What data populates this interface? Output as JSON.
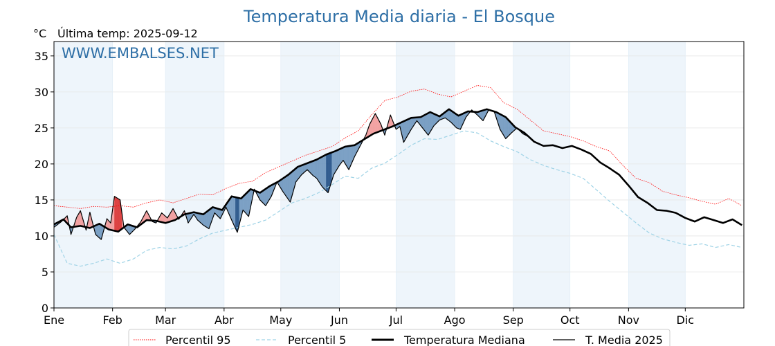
{
  "header": {
    "title": "Temperatura Media diaria - El Bosque",
    "unit": "°C",
    "last_temp": "Última temp: 2025-09-12",
    "watermark": "WWW.EMBALSES.NET"
  },
  "colors": {
    "title": "#2e6fa6",
    "p95": "#ff0000",
    "p5": "#9fd3e6",
    "median": "#000000",
    "current": "#000000",
    "above_fill": "#f29a9a",
    "above_dark": "#d93030",
    "below_fill": "#6f97bf",
    "below_dark": "#1f4e85",
    "month_band": "#eef5fb"
  },
  "chart_data": {
    "type": "line",
    "title": "Temperatura Media diaria - El Bosque",
    "ylabel": "°C",
    "xlim": [
      1,
      366
    ],
    "ylim": [
      0,
      37
    ],
    "yticks": [
      0,
      5,
      10,
      15,
      20,
      25,
      30,
      35
    ],
    "months": [
      "Ene",
      "Feb",
      "Mar",
      "Abr",
      "May",
      "Jun",
      "Jul",
      "Ago",
      "Sep",
      "Oct",
      "Nov",
      "Dic"
    ],
    "month_start_days": [
      1,
      32,
      60,
      91,
      121,
      152,
      182,
      213,
      244,
      274,
      305,
      335
    ],
    "grid": true,
    "legend_position": "bottom",
    "series": [
      {
        "name": "Percentil 95",
        "style": "dotted",
        "points": [
          [
            1,
            14.2
          ],
          [
            8,
            14.0
          ],
          [
            15,
            13.8
          ],
          [
            22,
            14.1
          ],
          [
            29,
            14.0
          ],
          [
            36,
            14.2
          ],
          [
            43,
            14.0
          ],
          [
            50,
            14.6
          ],
          [
            57,
            15.0
          ],
          [
            64,
            14.6
          ],
          [
            71,
            15.2
          ],
          [
            78,
            15.8
          ],
          [
            85,
            15.7
          ],
          [
            92,
            16.6
          ],
          [
            99,
            17.3
          ],
          [
            106,
            17.6
          ],
          [
            113,
            18.8
          ],
          [
            120,
            19.6
          ],
          [
            127,
            20.4
          ],
          [
            134,
            21.2
          ],
          [
            141,
            21.8
          ],
          [
            148,
            22.4
          ],
          [
            155,
            23.6
          ],
          [
            162,
            24.6
          ],
          [
            169,
            26.8
          ],
          [
            176,
            28.8
          ],
          [
            183,
            29.3
          ],
          [
            190,
            30.1
          ],
          [
            197,
            30.4
          ],
          [
            204,
            29.7
          ],
          [
            211,
            29.3
          ],
          [
            218,
            30.1
          ],
          [
            225,
            30.9
          ],
          [
            232,
            30.6
          ],
          [
            239,
            28.5
          ],
          [
            246,
            27.6
          ],
          [
            253,
            26.1
          ],
          [
            260,
            24.6
          ],
          [
            267,
            24.2
          ],
          [
            274,
            23.8
          ],
          [
            281,
            23.2
          ],
          [
            288,
            22.4
          ],
          [
            295,
            21.8
          ],
          [
            302,
            19.8
          ],
          [
            309,
            18.0
          ],
          [
            316,
            17.4
          ],
          [
            323,
            16.2
          ],
          [
            330,
            15.7
          ],
          [
            337,
            15.3
          ],
          [
            344,
            14.8
          ],
          [
            351,
            14.4
          ],
          [
            358,
            15.2
          ],
          [
            365,
            14.2
          ]
        ]
      },
      {
        "name": "Percentil 5",
        "style": "dashed",
        "points": [
          [
            1,
            10.2
          ],
          [
            8,
            6.2
          ],
          [
            15,
            5.8
          ],
          [
            22,
            6.2
          ],
          [
            29,
            6.8
          ],
          [
            36,
            6.2
          ],
          [
            43,
            6.8
          ],
          [
            50,
            8.0
          ],
          [
            57,
            8.4
          ],
          [
            64,
            8.2
          ],
          [
            71,
            8.6
          ],
          [
            78,
            9.6
          ],
          [
            85,
            10.4
          ],
          [
            92,
            10.8
          ],
          [
            99,
            11.2
          ],
          [
            106,
            11.6
          ],
          [
            113,
            12.2
          ],
          [
            120,
            13.4
          ],
          [
            127,
            14.6
          ],
          [
            134,
            15.2
          ],
          [
            141,
            16.0
          ],
          [
            148,
            17.1
          ],
          [
            155,
            18.3
          ],
          [
            162,
            18.0
          ],
          [
            169,
            19.4
          ],
          [
            176,
            20.1
          ],
          [
            183,
            21.3
          ],
          [
            190,
            22.6
          ],
          [
            197,
            23.5
          ],
          [
            204,
            23.4
          ],
          [
            211,
            24.0
          ],
          [
            218,
            24.6
          ],
          [
            225,
            24.3
          ],
          [
            232,
            23.2
          ],
          [
            239,
            22.4
          ],
          [
            246,
            21.7
          ],
          [
            253,
            20.6
          ],
          [
            260,
            19.8
          ],
          [
            267,
            19.2
          ],
          [
            274,
            18.7
          ],
          [
            281,
            18.0
          ],
          [
            288,
            16.4
          ],
          [
            295,
            14.8
          ],
          [
            302,
            13.3
          ],
          [
            309,
            11.8
          ],
          [
            316,
            10.4
          ],
          [
            323,
            9.6
          ],
          [
            330,
            9.1
          ],
          [
            337,
            8.7
          ],
          [
            344,
            8.9
          ],
          [
            351,
            8.4
          ],
          [
            358,
            8.8
          ],
          [
            365,
            8.4
          ]
        ]
      },
      {
        "name": "Temperatura Mediana",
        "style": "thick",
        "points": [
          [
            1,
            11.6
          ],
          [
            6,
            12.3
          ],
          [
            10,
            11.2
          ],
          [
            15,
            11.4
          ],
          [
            20,
            11.1
          ],
          [
            25,
            11.7
          ],
          [
            30,
            10.9
          ],
          [
            35,
            10.6
          ],
          [
            40,
            11.6
          ],
          [
            45,
            11.2
          ],
          [
            50,
            12.2
          ],
          [
            55,
            12.1
          ],
          [
            60,
            11.8
          ],
          [
            65,
            12.2
          ],
          [
            70,
            13.0
          ],
          [
            75,
            13.3
          ],
          [
            80,
            13.0
          ],
          [
            85,
            14.0
          ],
          [
            90,
            13.6
          ],
          [
            95,
            15.5
          ],
          [
            100,
            15.2
          ],
          [
            105,
            16.5
          ],
          [
            110,
            16.0
          ],
          [
            115,
            16.9
          ],
          [
            120,
            17.6
          ],
          [
            125,
            18.5
          ],
          [
            130,
            19.6
          ],
          [
            135,
            20.1
          ],
          [
            140,
            20.6
          ],
          [
            145,
            21.3
          ],
          [
            150,
            21.8
          ],
          [
            155,
            22.4
          ],
          [
            160,
            22.6
          ],
          [
            165,
            23.4
          ],
          [
            170,
            24.2
          ],
          [
            175,
            24.7
          ],
          [
            180,
            25.2
          ],
          [
            185,
            25.8
          ],
          [
            190,
            26.4
          ],
          [
            195,
            26.5
          ],
          [
            200,
            27.2
          ],
          [
            205,
            26.6
          ],
          [
            210,
            27.6
          ],
          [
            215,
            26.7
          ],
          [
            220,
            27.3
          ],
          [
            225,
            27.2
          ],
          [
            230,
            27.6
          ],
          [
            235,
            27.2
          ],
          [
            240,
            26.5
          ],
          [
            245,
            25.1
          ],
          [
            250,
            24.3
          ],
          [
            255,
            23.1
          ],
          [
            260,
            22.5
          ],
          [
            265,
            22.6
          ],
          [
            270,
            22.2
          ],
          [
            275,
            22.5
          ],
          [
            280,
            22.0
          ],
          [
            285,
            21.4
          ],
          [
            290,
            20.2
          ],
          [
            295,
            19.4
          ],
          [
            300,
            18.5
          ],
          [
            305,
            17.0
          ],
          [
            310,
            15.4
          ],
          [
            315,
            14.6
          ],
          [
            320,
            13.6
          ],
          [
            325,
            13.5
          ],
          [
            330,
            13.2
          ],
          [
            335,
            12.5
          ],
          [
            340,
            12.0
          ],
          [
            345,
            12.6
          ],
          [
            350,
            12.2
          ],
          [
            355,
            11.8
          ],
          [
            360,
            12.3
          ],
          [
            365,
            11.5
          ]
        ]
      },
      {
        "name": "T. Media 2025",
        "style": "thin",
        "points": [
          [
            1,
            11.2
          ],
          [
            5,
            12.0
          ],
          [
            8,
            12.8
          ],
          [
            10,
            10.2
          ],
          [
            13,
            12.6
          ],
          [
            15,
            13.5
          ],
          [
            18,
            10.8
          ],
          [
            20,
            13.3
          ],
          [
            23,
            10.2
          ],
          [
            26,
            9.5
          ],
          [
            29,
            12.4
          ],
          [
            31,
            11.8
          ],
          [
            33,
            15.5
          ],
          [
            36,
            15.0
          ],
          [
            38,
            11.2
          ],
          [
            41,
            10.2
          ],
          [
            44,
            11.0
          ],
          [
            47,
            12.0
          ],
          [
            50,
            13.5
          ],
          [
            53,
            12.0
          ],
          [
            55,
            11.8
          ],
          [
            58,
            13.2
          ],
          [
            61,
            12.5
          ],
          [
            64,
            13.8
          ],
          [
            67,
            12.3
          ],
          [
            70,
            13.5
          ],
          [
            72,
            11.8
          ],
          [
            75,
            13.0
          ],
          [
            77,
            12.2
          ],
          [
            80,
            11.5
          ],
          [
            83,
            11.0
          ],
          [
            86,
            13.2
          ],
          [
            89,
            12.4
          ],
          [
            92,
            14.0
          ],
          [
            95,
            12.2
          ],
          [
            98,
            10.5
          ],
          [
            101,
            13.6
          ],
          [
            104,
            12.7
          ],
          [
            107,
            16.5
          ],
          [
            110,
            15.0
          ],
          [
            113,
            14.2
          ],
          [
            116,
            15.5
          ],
          [
            119,
            17.5
          ],
          [
            122,
            16.2
          ],
          [
            126,
            14.7
          ],
          [
            129,
            17.5
          ],
          [
            132,
            18.5
          ],
          [
            135,
            19.2
          ],
          [
            138,
            18.4
          ],
          [
            140,
            18.0
          ],
          [
            143,
            16.8
          ],
          [
            146,
            16.0
          ],
          [
            149,
            18.5
          ],
          [
            152,
            19.8
          ],
          [
            154,
            20.5
          ],
          [
            157,
            19.2
          ],
          [
            160,
            21.0
          ],
          [
            163,
            22.5
          ],
          [
            166,
            24.0
          ],
          [
            168,
            25.5
          ],
          [
            171,
            27.0
          ],
          [
            174,
            25.5
          ],
          [
            176,
            24.0
          ],
          [
            179,
            26.8
          ],
          [
            182,
            24.8
          ],
          [
            184,
            25.2
          ],
          [
            186,
            23.0
          ],
          [
            190,
            24.8
          ],
          [
            193,
            26.0
          ],
          [
            196,
            25.0
          ],
          [
            199,
            24.0
          ],
          [
            202,
            25.3
          ],
          [
            205,
            26.1
          ],
          [
            208,
            26.4
          ],
          [
            211,
            25.8
          ],
          [
            214,
            25.0
          ],
          [
            216,
            24.8
          ],
          [
            219,
            26.5
          ],
          [
            222,
            27.5
          ],
          [
            225,
            26.8
          ],
          [
            228,
            26.0
          ],
          [
            231,
            27.5
          ],
          [
            234,
            27.2
          ],
          [
            237,
            24.8
          ],
          [
            240,
            23.5
          ],
          [
            243,
            24.3
          ],
          [
            246,
            25.0
          ],
          [
            249,
            24.2
          ],
          [
            252,
            23.8
          ]
        ]
      }
    ]
  }
}
